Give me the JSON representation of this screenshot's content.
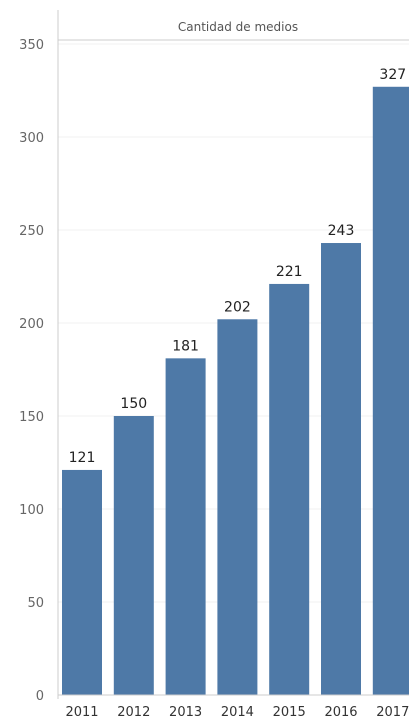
{
  "chart_data": {
    "type": "bar",
    "title": "Cantidad de medios",
    "categories": [
      "2011",
      "2012",
      "2013",
      "2014",
      "2015",
      "2016",
      "2017"
    ],
    "values": [
      121,
      150,
      181,
      202,
      221,
      243,
      327
    ],
    "xlabel": "",
    "ylabel": "",
    "ylim": [
      0,
      350
    ],
    "yticks": [
      0,
      50,
      100,
      150,
      200,
      250,
      300,
      350
    ],
    "grid": true,
    "legend": "none",
    "bar_color": "#4e79a7",
    "gridline_color": "#f0f0f0",
    "axis_color": "#cccccc"
  }
}
